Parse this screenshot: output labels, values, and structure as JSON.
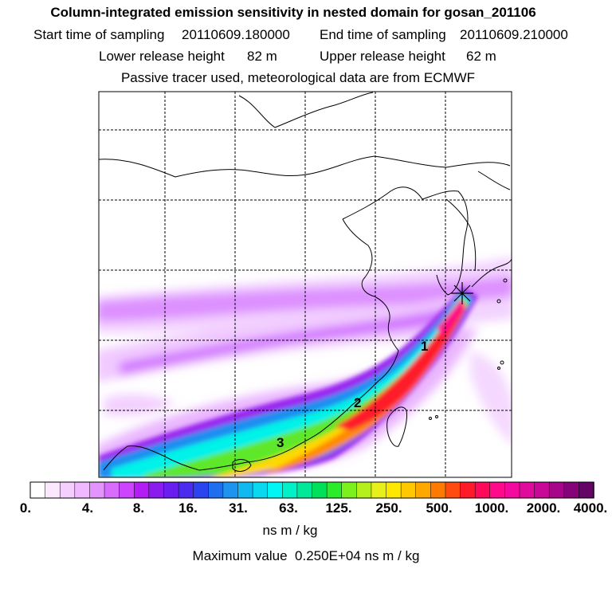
{
  "header": {
    "title": "Column-integrated emission sensitivity in nested domain for gosan_201106",
    "start_label": "Start time of sampling",
    "start_value": "20110609.180000",
    "end_label": "End time of sampling",
    "end_value": "20110609.210000",
    "lower_label": "Lower release height",
    "lower_value": "82 m",
    "upper_label": "Upper release height",
    "upper_value": "62 m",
    "note": "Passive tracer used, meteorological data are from ECMWF"
  },
  "colorbar": {
    "tick_labels": [
      "0.",
      "4.",
      "8.",
      "16.",
      "31.",
      "63.",
      "125.",
      "250.",
      "500.",
      "1000.",
      "2000.",
      "4000."
    ],
    "colors": [
      "#ffffff",
      "#fbe8ff",
      "#f5d0ff",
      "#efb8ff",
      "#e394ff",
      "#d86cff",
      "#cc44ff",
      "#b31cf5",
      "#8a1cf0",
      "#6a1ef0",
      "#4b2bf0",
      "#2a45f0",
      "#1f6ef0",
      "#1e94f0",
      "#12b8f0",
      "#0ad8f0",
      "#00f5f5",
      "#00f0c8",
      "#00e89a",
      "#00e05a",
      "#2aec2a",
      "#7cf01c",
      "#b6f01c",
      "#e8f01c",
      "#ffe800",
      "#ffc800",
      "#ffa800",
      "#ff7a00",
      "#ff4a10",
      "#ff1a2a",
      "#ff0a5a",
      "#ff0a8a",
      "#f50aa0",
      "#e00a9c",
      "#c80896",
      "#a8068a",
      "#86047a",
      "#640466"
    ],
    "units": "ns m / kg"
  },
  "footer": {
    "max_label": "Maximum value",
    "max_value": "0.250E+04",
    "max_units": "ns m / kg"
  },
  "map": {
    "trajectory_labels": [
      "1",
      "2",
      "3"
    ],
    "receptor_marker": "star-icon"
  },
  "chart_data": {
    "type": "heatmap",
    "title": "Column-integrated emission sensitivity in nested domain for gosan_201106",
    "colorbar_levels": [
      0,
      4,
      8,
      16,
      31,
      63,
      125,
      250,
      500,
      1000,
      2000,
      4000
    ],
    "units": "ns m / kg",
    "max_value": 2500,
    "trajectory_markers": [
      "1",
      "2",
      "3"
    ]
  }
}
